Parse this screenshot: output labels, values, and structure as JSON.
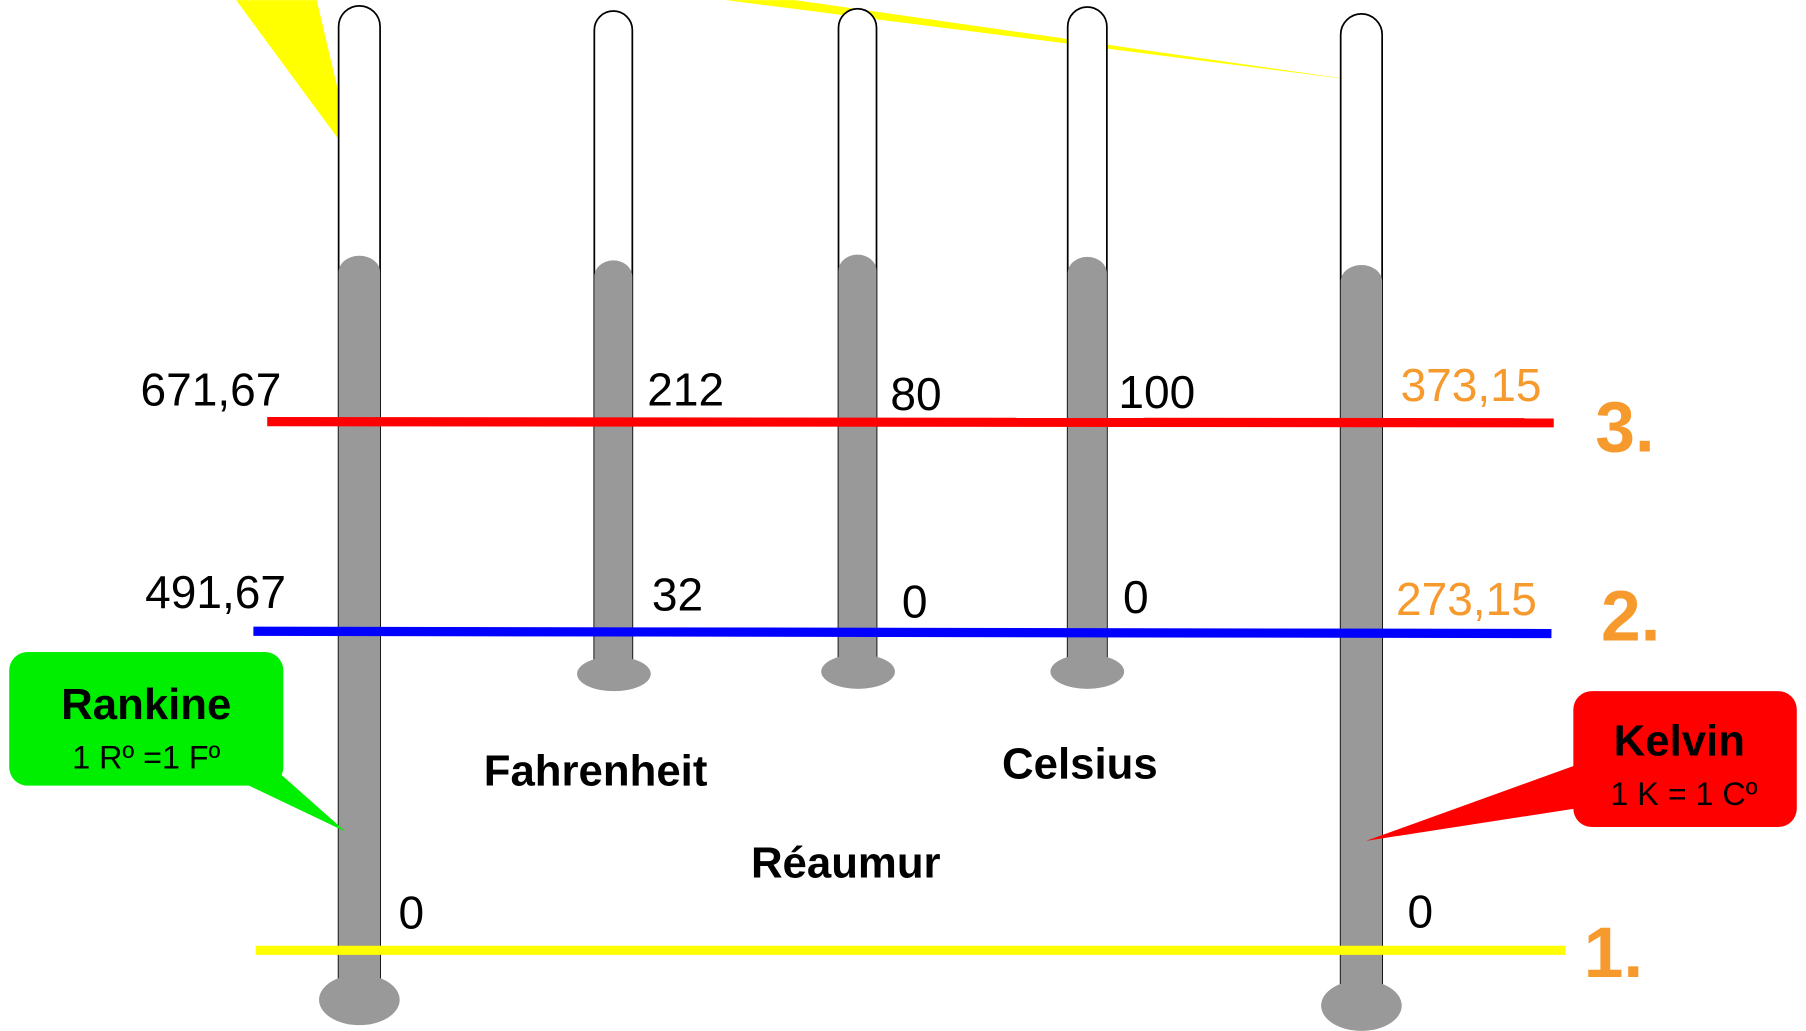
{
  "thermometers": [
    {
      "name": "Rankine",
      "note": "1 Rº =1 Fº",
      "boiling": "671,67",
      "freezing": "491,67",
      "absolute_zero": "0"
    },
    {
      "name": "Fahrenheit",
      "boiling": "212",
      "freezing": "32"
    },
    {
      "name": "Réaumur",
      "boiling": "80",
      "freezing": "0"
    },
    {
      "name": "Celsius",
      "boiling": "100",
      "freezing": "0"
    },
    {
      "name": "Kelvin",
      "note": "1 K = 1 Cº",
      "boiling": "373,15",
      "freezing": "273,15",
      "absolute_zero": "0"
    }
  ],
  "levels": [
    "1.",
    "2.",
    "3."
  ]
}
